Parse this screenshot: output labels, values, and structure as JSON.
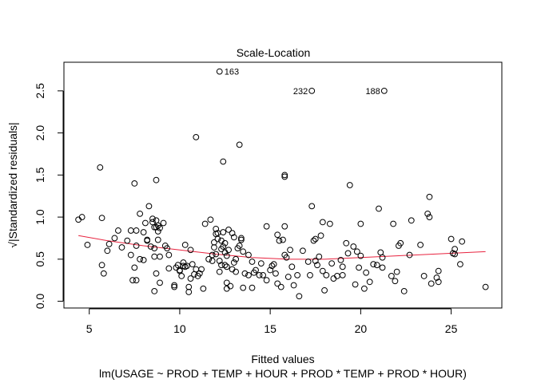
{
  "chart_data": {
    "type": "scatter",
    "title": "Scale-Location",
    "xlabel": "Fitted values",
    "ylabel": "√|Standardized residuals|",
    "subtitle": "lm(USAGE ~ PROD + TEMP + HOUR + PROD * TEMP + PROD * HOUR)",
    "xlim": [
      3.6,
      27.8
    ],
    "ylim": [
      -0.08,
      2.84
    ],
    "xticks": [
      5,
      10,
      15,
      20,
      25
    ],
    "yticks": [
      0.0,
      0.5,
      1.0,
      1.5,
      2.0,
      2.5
    ],
    "xtick_labels": [
      "5",
      "10",
      "15",
      "20",
      "25"
    ],
    "ytick_labels": [
      "0.0",
      "0.5",
      "1.0",
      "1.5",
      "2.0",
      "2.5"
    ],
    "colors": {
      "points": "#000000",
      "smoother": "#E8233F",
      "frame": "#000000"
    },
    "labeled_points": [
      {
        "label": "163",
        "x": 12.2,
        "y": 2.73
      },
      {
        "label": "232",
        "x": 17.3,
        "y": 2.5
      },
      {
        "label": "188",
        "x": 21.3,
        "y": 2.5
      }
    ],
    "points": [
      [
        4.4,
        0.97
      ],
      [
        4.6,
        1.0
      ],
      [
        4.9,
        0.67
      ],
      [
        5.6,
        1.59
      ],
      [
        5.7,
        0.99
      ],
      [
        5.7,
        0.43
      ],
      [
        5.8,
        0.33
      ],
      [
        6.0,
        0.6
      ],
      [
        6.1,
        0.68
      ],
      [
        6.4,
        0.75
      ],
      [
        6.6,
        0.84
      ],
      [
        6.8,
        0.64
      ],
      [
        7.1,
        0.72
      ],
      [
        7.3,
        0.84
      ],
      [
        7.3,
        0.55
      ],
      [
        7.5,
        1.4
      ],
      [
        7.6,
        0.84
      ],
      [
        7.6,
        0.66
      ],
      [
        7.5,
        0.4
      ],
      [
        7.4,
        0.25
      ],
      [
        7.6,
        0.25
      ],
      [
        7.8,
        1.04
      ],
      [
        7.8,
        0.5
      ],
      [
        8.0,
        0.49
      ],
      [
        8.0,
        0.82
      ],
      [
        8.1,
        0.93
      ],
      [
        8.2,
        0.72
      ],
      [
        8.2,
        0.73
      ],
      [
        8.3,
        1.13
      ],
      [
        8.4,
        0.65
      ],
      [
        8.5,
        0.98
      ],
      [
        8.5,
        0.94
      ],
      [
        8.6,
        0.63
      ],
      [
        8.6,
        0.88
      ],
      [
        8.6,
        0.53
      ],
      [
        8.7,
        0.33
      ],
      [
        8.7,
        0.96
      ],
      [
        8.7,
        0.88
      ],
      [
        8.8,
        0.9
      ],
      [
        8.8,
        0.83
      ],
      [
        8.8,
        0.73
      ],
      [
        8.9,
        0.87
      ],
      [
        8.9,
        0.53
      ],
      [
        8.6,
        0.12
      ],
      [
        8.9,
        0.22
      ],
      [
        8.7,
        1.44
      ],
      [
        9.1,
        0.93
      ],
      [
        9.2,
        0.66
      ],
      [
        9.3,
        0.63
      ],
      [
        9.4,
        0.55
      ],
      [
        9.4,
        0.39
      ],
      [
        9.7,
        0.19
      ],
      [
        9.7,
        0.17
      ],
      [
        9.8,
        0.4
      ],
      [
        9.9,
        0.43
      ],
      [
        10.0,
        0.37
      ],
      [
        10.0,
        0.36
      ],
      [
        10.1,
        0.3
      ],
      [
        10.2,
        0.42
      ],
      [
        10.2,
        0.46
      ],
      [
        10.3,
        0.41
      ],
      [
        10.3,
        0.67
      ],
      [
        10.4,
        0.42
      ],
      [
        10.5,
        0.11
      ],
      [
        10.5,
        0.17
      ],
      [
        10.6,
        0.27
      ],
      [
        10.6,
        0.61
      ],
      [
        10.7,
        0.44
      ],
      [
        10.8,
        0.32
      ],
      [
        10.9,
        1.95
      ],
      [
        10.9,
        0.38
      ],
      [
        11.0,
        0.3
      ],
      [
        11.1,
        0.33
      ],
      [
        11.2,
        0.38
      ],
      [
        11.3,
        0.15
      ],
      [
        11.4,
        0.92
      ],
      [
        11.6,
        0.5
      ],
      [
        11.7,
        0.97
      ],
      [
        11.8,
        0.48
      ],
      [
        11.8,
        0.55
      ],
      [
        11.9,
        0.64
      ],
      [
        11.9,
        0.7
      ],
      [
        12.0,
        0.8
      ],
      [
        12.0,
        0.86
      ],
      [
        12.0,
        0.56
      ],
      [
        12.1,
        0.81
      ],
      [
        12.1,
        0.74
      ],
      [
        12.2,
        0.48
      ],
      [
        12.2,
        0.35
      ],
      [
        12.3,
        0.43
      ],
      [
        12.3,
        0.62
      ],
      [
        12.3,
        0.72
      ],
      [
        12.4,
        0.82
      ],
      [
        12.4,
        0.65
      ],
      [
        12.4,
        1.66
      ],
      [
        12.5,
        0.58
      ],
      [
        12.5,
        0.69
      ],
      [
        12.5,
        0.43
      ],
      [
        12.6,
        0.54
      ],
      [
        12.6,
        0.22
      ],
      [
        12.6,
        0.15
      ],
      [
        12.6,
        0.41
      ],
      [
        12.7,
        0.85
      ],
      [
        12.7,
        0.61
      ],
      [
        12.8,
        0.18
      ],
      [
        12.9,
        0.81
      ],
      [
        12.9,
        0.38
      ],
      [
        13.0,
        0.76
      ],
      [
        13.0,
        0.46
      ],
      [
        13.1,
        0.5
      ],
      [
        13.1,
        0.35
      ],
      [
        13.2,
        0.63
      ],
      [
        13.3,
        1.86
      ],
      [
        13.3,
        0.66
      ],
      [
        13.4,
        0.73
      ],
      [
        13.4,
        0.75
      ],
      [
        13.5,
        0.59
      ],
      [
        13.5,
        0.16
      ],
      [
        13.6,
        0.33
      ],
      [
        13.8,
        0.55
      ],
      [
        13.8,
        0.31
      ],
      [
        14.0,
        0.47
      ],
      [
        14.0,
        0.16
      ],
      [
        14.1,
        0.34
      ],
      [
        14.2,
        0.37
      ],
      [
        14.4,
        0.31
      ],
      [
        14.5,
        0.45
      ],
      [
        14.6,
        0.31
      ],
      [
        14.8,
        0.25
      ],
      [
        14.8,
        0.89
      ],
      [
        15.0,
        0.37
      ],
      [
        15.1,
        0.42
      ],
      [
        15.2,
        0.44
      ],
      [
        15.3,
        0.33
      ],
      [
        15.4,
        0.79
      ],
      [
        15.4,
        0.21
      ],
      [
        15.5,
        0.72
      ],
      [
        15.6,
        0.17
      ],
      [
        15.7,
        0.73
      ],
      [
        15.8,
        1.5
      ],
      [
        15.8,
        1.48
      ],
      [
        15.8,
        0.89
      ],
      [
        15.8,
        0.55
      ],
      [
        15.9,
        0.52
      ],
      [
        16.0,
        0.29
      ],
      [
        16.1,
        0.61
      ],
      [
        16.2,
        0.41
      ],
      [
        16.3,
        0.19
      ],
      [
        16.5,
        0.31
      ],
      [
        16.6,
        0.06
      ],
      [
        16.8,
        0.6
      ],
      [
        17.1,
        0.47
      ],
      [
        17.2,
        0.31
      ],
      [
        17.3,
        1.13
      ],
      [
        17.4,
        0.72
      ],
      [
        17.5,
        0.48
      ],
      [
        17.5,
        0.74
      ],
      [
        17.6,
        0.43
      ],
      [
        17.7,
        0.53
      ],
      [
        17.8,
        0.78
      ],
      [
        17.9,
        0.36
      ],
      [
        17.9,
        0.94
      ],
      [
        18.0,
        0.13
      ],
      [
        18.1,
        0.31
      ],
      [
        18.3,
        0.92
      ],
      [
        18.4,
        0.45
      ],
      [
        18.5,
        0.27
      ],
      [
        18.7,
        0.3
      ],
      [
        18.9,
        0.49
      ],
      [
        19.0,
        0.41
      ],
      [
        19.0,
        0.31
      ],
      [
        19.2,
        0.69
      ],
      [
        19.3,
        0.57
      ],
      [
        19.4,
        1.38
      ],
      [
        19.6,
        0.65
      ],
      [
        19.7,
        0.2
      ],
      [
        19.8,
        0.59
      ],
      [
        19.9,
        0.4
      ],
      [
        20.0,
        0.92
      ],
      [
        20.0,
        0.54
      ],
      [
        20.2,
        0.15
      ],
      [
        20.3,
        0.34
      ],
      [
        20.5,
        0.23
      ],
      [
        20.7,
        0.44
      ],
      [
        20.9,
        0.43
      ],
      [
        21.0,
        1.1
      ],
      [
        21.1,
        0.58
      ],
      [
        21.2,
        0.52
      ],
      [
        21.2,
        0.4
      ],
      [
        21.7,
        0.3
      ],
      [
        21.8,
        0.92
      ],
      [
        21.9,
        0.24
      ],
      [
        22.0,
        0.35
      ],
      [
        22.1,
        0.66
      ],
      [
        22.2,
        0.69
      ],
      [
        22.4,
        0.12
      ],
      [
        22.7,
        0.55
      ],
      [
        22.8,
        0.96
      ],
      [
        23.3,
        0.67
      ],
      [
        23.5,
        0.3
      ],
      [
        23.7,
        1.04
      ],
      [
        23.8,
        1.24
      ],
      [
        23.8,
        1.0
      ],
      [
        23.9,
        0.21
      ],
      [
        24.2,
        0.28
      ],
      [
        24.3,
        0.36
      ],
      [
        24.3,
        0.23
      ],
      [
        25.1,
        0.57
      ],
      [
        25.2,
        0.56
      ],
      [
        25.2,
        0.62
      ],
      [
        25.5,
        0.44
      ],
      [
        25.6,
        0.71
      ],
      [
        25.0,
        0.74
      ],
      [
        26.9,
        0.17
      ]
    ],
    "smoother": [
      [
        4.4,
        0.78
      ],
      [
        6.0,
        0.72
      ],
      [
        8.0,
        0.66
      ],
      [
        10.0,
        0.61
      ],
      [
        12.0,
        0.56
      ],
      [
        14.0,
        0.52
      ],
      [
        16.0,
        0.5
      ],
      [
        18.0,
        0.5
      ],
      [
        20.0,
        0.52
      ],
      [
        22.0,
        0.54
      ],
      [
        24.0,
        0.56
      ],
      [
        26.9,
        0.59
      ]
    ]
  }
}
